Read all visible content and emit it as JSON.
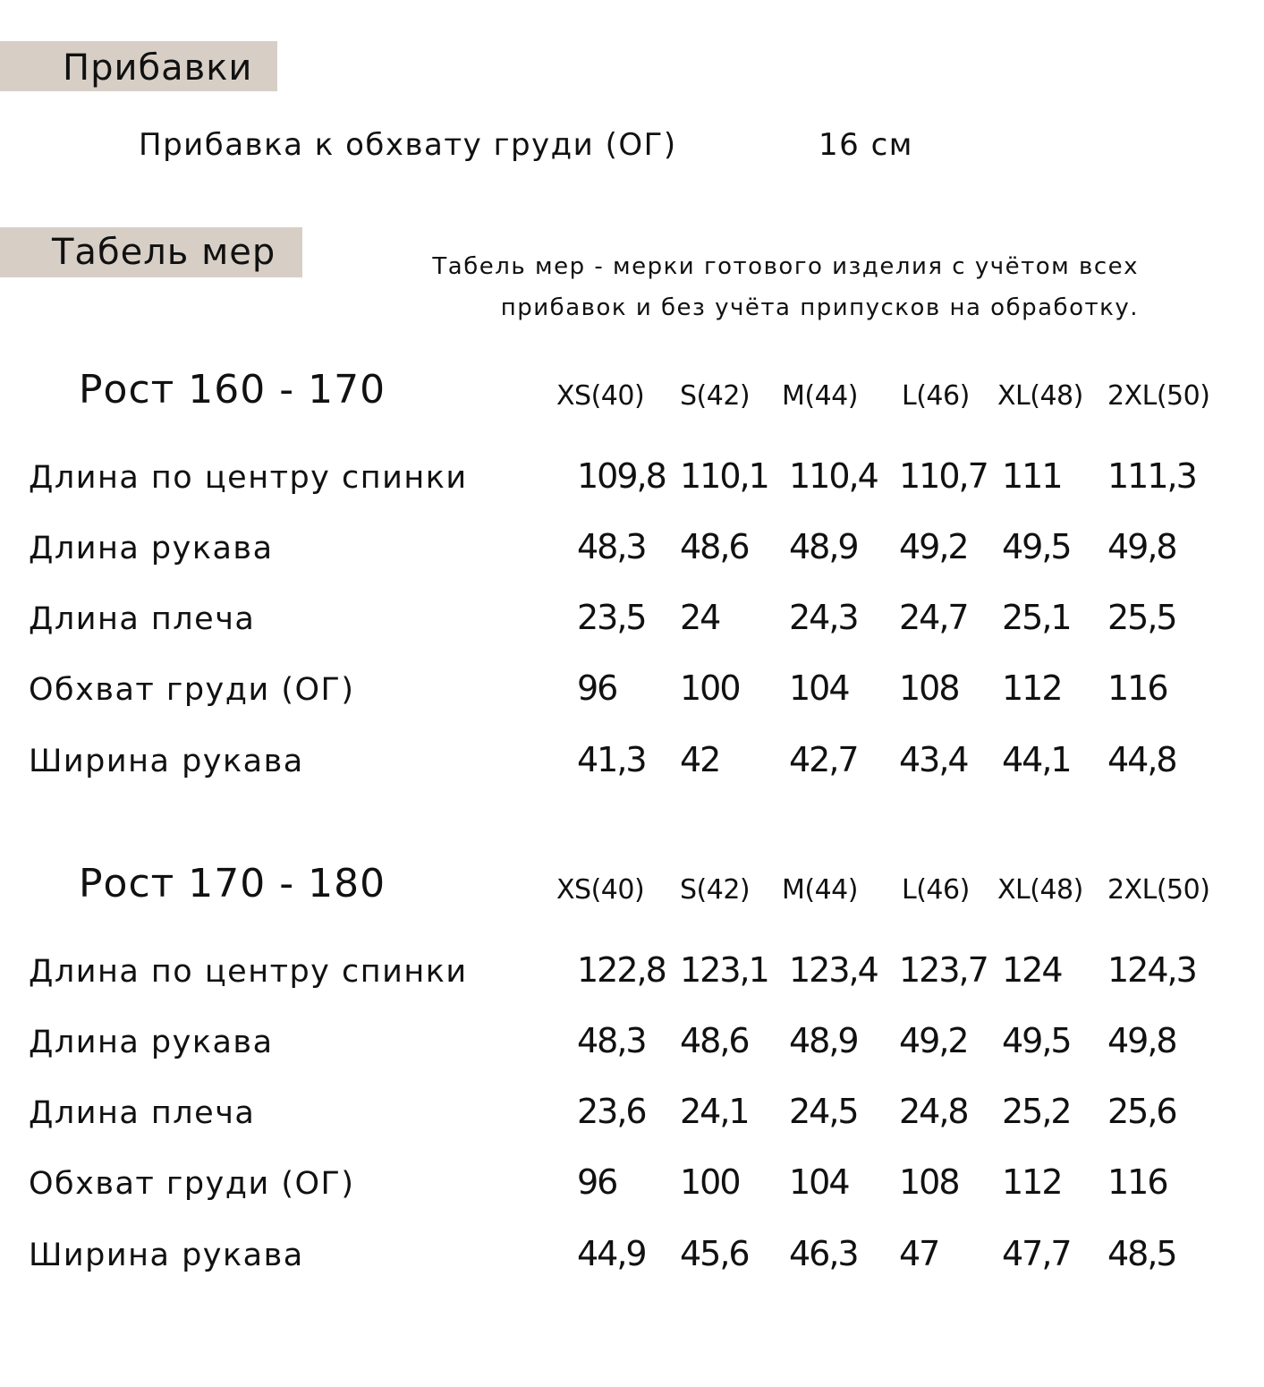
{
  "additions": {
    "heading": "Прибавки",
    "items": [
      {
        "label": "Прибавка к обхвату груди (ОГ)",
        "value": "16 см"
      }
    ]
  },
  "measurements": {
    "heading": "Табель мер",
    "note_lines": [
      "Табель мер - мерки готового изделия с учётом всех",
      "прибавок и без учёта припусков на обработку."
    ],
    "sizes": [
      "XS(40)",
      "S(42)",
      "M(44)",
      "L(46)",
      "XL(48)",
      "2XL(50)"
    ],
    "sections": [
      {
        "title": "Рост 160 - 170",
        "rows": [
          {
            "label": "Длина по центру спинки",
            "values": [
              "109,8",
              "110,1",
              "110,4",
              "110,7",
              "111",
              "111,3"
            ]
          },
          {
            "label": "Длина рукава",
            "values": [
              "48,3",
              "48,6",
              "48,9",
              "49,2",
              "49,5",
              "49,8"
            ]
          },
          {
            "label": "Длина плеча",
            "values": [
              "23,5",
              "24",
              "24,3",
              "24,7",
              "25,1",
              "25,5"
            ]
          },
          {
            "label": "Обхват груди (ОГ)",
            "values": [
              "96",
              "100",
              "104",
              "108",
              "112",
              "116"
            ]
          },
          {
            "label": "Ширина рукава",
            "values": [
              "41,3",
              "42",
              "42,7",
              "43,4",
              "44,1",
              "44,8"
            ]
          }
        ]
      },
      {
        "title": "Рост 170 - 180",
        "rows": [
          {
            "label": "Длина по центру спинки",
            "values": [
              "122,8",
              "123,1",
              "123,4",
              "123,7",
              "124",
              "124,3"
            ]
          },
          {
            "label": "Длина рукава",
            "values": [
              "48,3",
              "48,6",
              "48,9",
              "49,2",
              "49,5",
              "49,8"
            ]
          },
          {
            "label": "Длина плеча",
            "values": [
              "23,6",
              "24,1",
              "24,5",
              "24,8",
              "25,2",
              "25,6"
            ]
          },
          {
            "label": "Обхват груди (ОГ)",
            "values": [
              "96",
              "100",
              "104",
              "108",
              "112",
              "116"
            ]
          },
          {
            "label": "Ширина рукава",
            "values": [
              "44,9",
              "45,6",
              "46,3",
              "47",
              "47,7",
              "48,5"
            ]
          }
        ]
      }
    ]
  }
}
